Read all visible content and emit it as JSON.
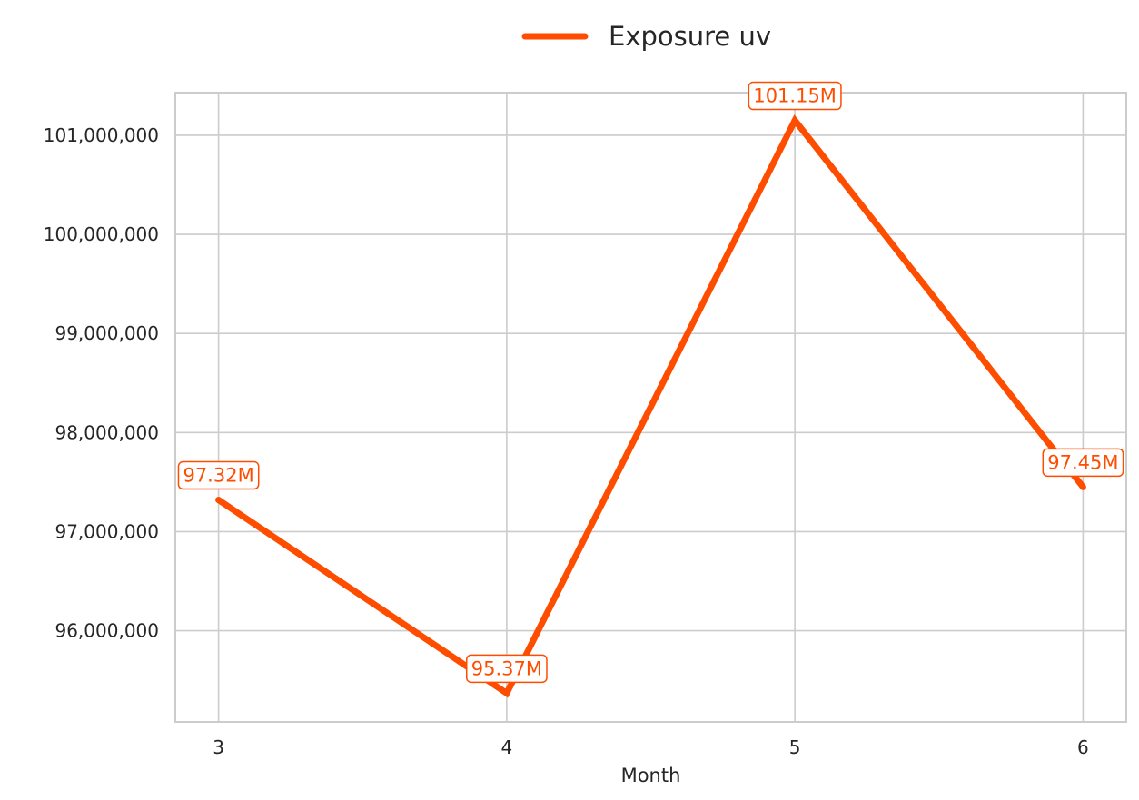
{
  "chart_data": {
    "type": "line",
    "title": "",
    "xlabel": "Month",
    "ylabel": "",
    "x": [
      3,
      4,
      5,
      6
    ],
    "x_tick_labels": [
      "3",
      "4",
      "5",
      "6"
    ],
    "xlim": [
      2.85,
      6.15
    ],
    "ylim": [
      95080000,
      101430000
    ],
    "y_ticks": [
      96000000,
      97000000,
      98000000,
      99000000,
      100000000,
      101000000
    ],
    "y_tick_labels": [
      "96,000,000",
      "97,000,000",
      "98,000,000",
      "99,000,000",
      "100,000,000",
      "101,000,000"
    ],
    "grid": true,
    "legend_position": "top-center",
    "series": [
      {
        "name": "Exposure uv",
        "color": "#ff4d00",
        "values": [
          97320000,
          95370000,
          101150000,
          97450000
        ],
        "data_labels": [
          "97.32M",
          "95.37M",
          "101.15M",
          "97.45M"
        ]
      }
    ]
  }
}
